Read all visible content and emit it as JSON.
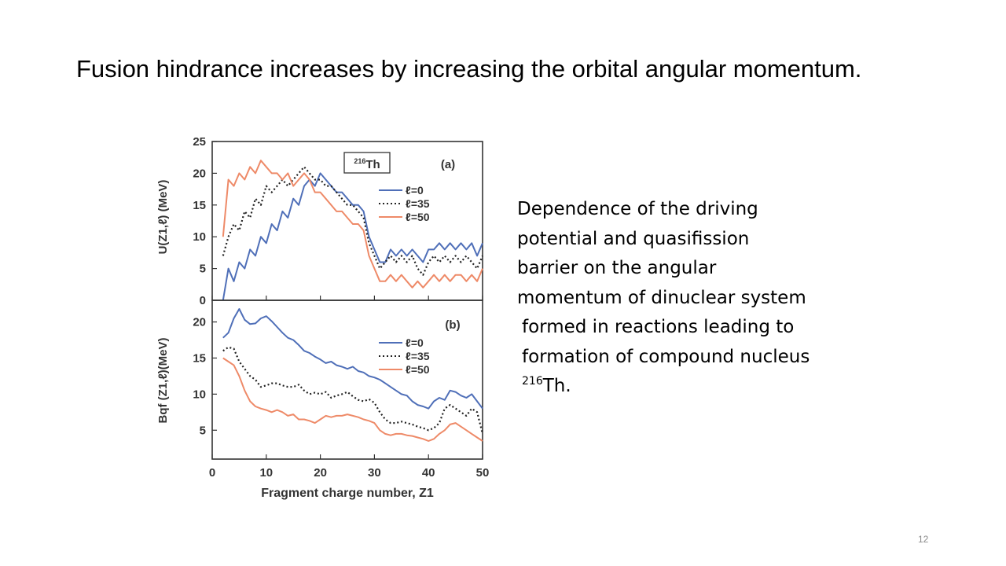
{
  "slide": {
    "title": "Fusion hindrance increases by increasing the orbital angular momentum.",
    "description_lines": [
      "Dependence of the driving",
      "potential and quasifission",
      "barrier on the angular",
      "momentum of dinuclear system",
      "formed in reactions leading to",
      "formation of compound nucleus"
    ],
    "description_sup": "216",
    "description_tail": "Th.",
    "page_number": "12"
  },
  "colors": {
    "l0": "#4f6fb8",
    "l35": "#222222",
    "l50": "#ee8a68",
    "frame": "#333333"
  },
  "chart_data": [
    {
      "type": "line",
      "panel_tag": "(a)",
      "nucleus_mass": "216",
      "nucleus_symbol": "Th",
      "ylabel": "U(Z1,ℓ) (MeV)",
      "xlim": [
        0,
        50
      ],
      "ylim": [
        0,
        25
      ],
      "yticks": [
        0,
        5,
        10,
        15,
        20,
        25
      ],
      "legend_position": "right",
      "series": [
        {
          "name": "ℓ=0",
          "color": "#4f6fb8",
          "style": "solid",
          "x": [
            2,
            3,
            4,
            5,
            6,
            7,
            8,
            9,
            10,
            11,
            12,
            13,
            14,
            15,
            16,
            17,
            18,
            19,
            20,
            21,
            22,
            23,
            24,
            25,
            26,
            27,
            28,
            29,
            30,
            31,
            32,
            33,
            34,
            35,
            36,
            37,
            38,
            39,
            40,
            41,
            42,
            43,
            44,
            45,
            46,
            47,
            48,
            49,
            50
          ],
          "y": [
            0,
            5,
            3,
            6,
            5,
            8,
            7,
            10,
            9,
            12,
            11,
            14,
            13,
            16,
            15,
            18,
            19,
            18,
            20,
            19,
            18,
            17,
            17,
            16,
            15,
            15,
            14,
            10,
            8,
            6,
            6,
            8,
            7,
            8,
            7,
            8,
            7,
            6,
            8,
            8,
            9,
            8,
            9,
            8,
            9,
            8,
            9,
            7,
            9
          ]
        },
        {
          "name": "ℓ=35",
          "color": "#222222",
          "style": "dotted",
          "x": [
            2,
            3,
            4,
            5,
            6,
            7,
            8,
            9,
            10,
            11,
            12,
            13,
            14,
            15,
            16,
            17,
            18,
            19,
            20,
            21,
            22,
            23,
            24,
            25,
            26,
            27,
            28,
            29,
            30,
            31,
            32,
            33,
            34,
            35,
            36,
            37,
            38,
            39,
            40,
            41,
            42,
            43,
            44,
            45,
            46,
            47,
            48,
            49,
            50
          ],
          "y": [
            7,
            10,
            12,
            11,
            14,
            13,
            16,
            15,
            18,
            17,
            18,
            19,
            18,
            19,
            20,
            21,
            20,
            19,
            19,
            18,
            18,
            17,
            16,
            15,
            15,
            14,
            13,
            9,
            7,
            5,
            6,
            7,
            6,
            7,
            6,
            7,
            5,
            4,
            6,
            7,
            6,
            7,
            6,
            7,
            6,
            7,
            6,
            5,
            7
          ]
        },
        {
          "name": "ℓ=50",
          "color": "#ee8a68",
          "style": "solid",
          "x": [
            2,
            3,
            4,
            5,
            6,
            7,
            8,
            9,
            10,
            11,
            12,
            13,
            14,
            15,
            16,
            17,
            18,
            19,
            20,
            21,
            22,
            23,
            24,
            25,
            26,
            27,
            28,
            29,
            30,
            31,
            32,
            33,
            34,
            35,
            36,
            37,
            38,
            39,
            40,
            41,
            42,
            43,
            44,
            45,
            46,
            47,
            48,
            49,
            50
          ],
          "y": [
            10,
            19,
            18,
            20,
            19,
            21,
            20,
            22,
            21,
            20,
            20,
            19,
            20,
            18,
            19,
            20,
            19,
            17,
            17,
            16,
            15,
            14,
            14,
            13,
            12,
            12,
            11,
            7,
            5,
            3,
            3,
            4,
            3,
            4,
            3,
            2,
            3,
            2,
            3,
            4,
            3,
            4,
            3,
            4,
            4,
            3,
            4,
            3,
            5
          ]
        }
      ]
    },
    {
      "type": "line",
      "panel_tag": "(b)",
      "ylabel": "Bqf (Z1,ℓ)(MeV)",
      "xlabel": "Fragment charge number, Z1",
      "xlim": [
        0,
        50
      ],
      "ylim": [
        1,
        23
      ],
      "yticks": [
        5,
        10,
        15,
        20
      ],
      "xticks": [
        0,
        10,
        20,
        30,
        40,
        50
      ],
      "legend_position": "right",
      "series": [
        {
          "name": "ℓ=0",
          "color": "#4f6fb8",
          "style": "solid",
          "x": [
            2,
            3,
            4,
            5,
            6,
            7,
            8,
            9,
            10,
            11,
            12,
            13,
            14,
            15,
            16,
            17,
            18,
            19,
            20,
            21,
            22,
            23,
            24,
            25,
            26,
            27,
            28,
            29,
            30,
            31,
            32,
            33,
            34,
            35,
            36,
            37,
            38,
            39,
            40,
            41,
            42,
            43,
            44,
            45,
            46,
            47,
            48,
            49,
            50
          ],
          "y": [
            17.8,
            18.5,
            20.5,
            21.8,
            20.3,
            19.7,
            19.8,
            20.5,
            20.8,
            20.1,
            19.3,
            18.5,
            17.8,
            17.5,
            16.8,
            16.0,
            15.7,
            15.2,
            14.8,
            14.3,
            14.5,
            14.0,
            13.8,
            13.5,
            13.8,
            13.2,
            13.0,
            12.5,
            12.3,
            12.0,
            11.5,
            11.0,
            10.5,
            10.0,
            9.8,
            9.0,
            8.5,
            8.3,
            8.0,
            9.0,
            9.5,
            9.2,
            10.5,
            10.3,
            9.8,
            9.5,
            10.0,
            9.0,
            8.0
          ]
        },
        {
          "name": "ℓ=35",
          "color": "#222222",
          "style": "dotted",
          "x": [
            2,
            3,
            4,
            5,
            6,
            7,
            8,
            9,
            10,
            11,
            12,
            13,
            14,
            15,
            16,
            17,
            18,
            19,
            20,
            21,
            22,
            23,
            24,
            25,
            26,
            27,
            28,
            29,
            30,
            31,
            32,
            33,
            34,
            35,
            36,
            37,
            38,
            39,
            40,
            41,
            42,
            43,
            44,
            45,
            46,
            47,
            48,
            49,
            50
          ],
          "y": [
            16.0,
            16.5,
            16.3,
            14.5,
            13.5,
            12.5,
            12.0,
            11.0,
            11.2,
            11.5,
            11.5,
            11.2,
            11.0,
            11.0,
            11.3,
            10.5,
            10.0,
            10.2,
            10.0,
            10.3,
            9.5,
            9.8,
            10.0,
            10.3,
            9.7,
            9.2,
            9.0,
            9.3,
            8.8,
            7.5,
            6.5,
            6.0,
            6.0,
            6.2,
            6.0,
            5.8,
            5.5,
            5.3,
            5.0,
            5.3,
            6.0,
            8.0,
            8.5,
            8.0,
            7.5,
            7.0,
            8.0,
            7.5,
            4.5
          ]
        },
        {
          "name": "ℓ=50",
          "color": "#ee8a68",
          "style": "solid",
          "x": [
            2,
            3,
            4,
            5,
            6,
            7,
            8,
            9,
            10,
            11,
            12,
            13,
            14,
            15,
            16,
            17,
            18,
            19,
            20,
            21,
            22,
            23,
            24,
            25,
            26,
            27,
            28,
            29,
            30,
            31,
            32,
            33,
            34,
            35,
            36,
            37,
            38,
            39,
            40,
            41,
            42,
            43,
            44,
            45,
            46,
            47,
            48,
            49,
            50
          ],
          "y": [
            15.0,
            14.5,
            14.0,
            12.5,
            10.5,
            9.0,
            8.3,
            8.0,
            7.8,
            7.5,
            7.8,
            7.5,
            7.0,
            7.2,
            6.5,
            6.5,
            6.3,
            6.0,
            6.5,
            7.0,
            6.8,
            7.0,
            7.0,
            7.2,
            7.0,
            6.8,
            6.5,
            6.3,
            6.0,
            5.0,
            4.5,
            4.3,
            4.5,
            4.5,
            4.3,
            4.2,
            4.0,
            3.8,
            3.5,
            3.8,
            4.5,
            5.0,
            5.8,
            6.0,
            5.5,
            5.0,
            4.5,
            4.0,
            3.5
          ]
        }
      ]
    }
  ]
}
